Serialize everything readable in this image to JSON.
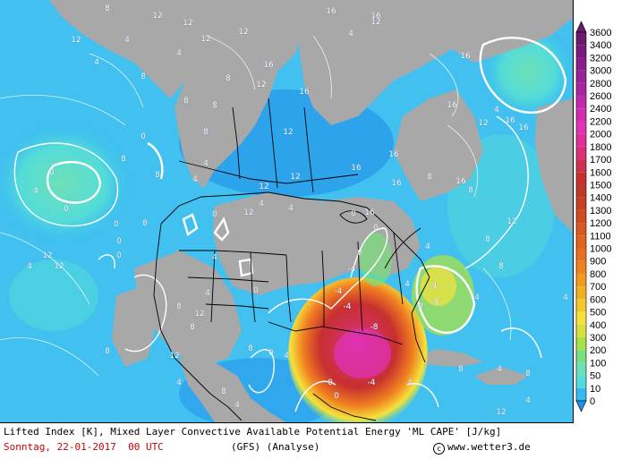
{
  "title": "Lifted Index [K], Mixed Layer Convective Available Potential Energy 'ML CAPE' [J/kg]",
  "date_line": "Sonntag, 22-01-2017  00 UTC",
  "model": "(GFS)",
  "analysis": "(Analyse)",
  "copyright": "www.wetter3.de",
  "copyright_symbol": "c",
  "colors": {
    "land": "#a8a8a8",
    "ocean_base": "#33b9f3",
    "ocean_light": "#5fd1ea",
    "ocean_cyan": "#54dcd8",
    "ocean_green": "#6ee0b8",
    "ocean_deep": "#1f8fea",
    "cape_yellow": "#f5e23b",
    "cape_orange": "#f0a020",
    "cape_red": "#d03030",
    "cape_magenta": "#e0309c"
  },
  "legend": {
    "levels": [
      "3600",
      "3400",
      "3200",
      "3000",
      "2800",
      "2600",
      "2400",
      "2200",
      "2000",
      "1800",
      "1700",
      "1600",
      "1500",
      "1400",
      "1300",
      "1200",
      "1100",
      "1000",
      "900",
      "800",
      "700",
      "600",
      "500",
      "400",
      "300",
      "200",
      "100",
      "50",
      "10",
      "0"
    ],
    "colors": [
      "#6a1a6a",
      "#7a1a7a",
      "#8a1e8a",
      "#9a2296",
      "#aa26a0",
      "#c02aa8",
      "#d02eb0",
      "#e032b4",
      "#e0309c",
      "#d8307a",
      "#d03050",
      "#c83030",
      "#c03828",
      "#c84024",
      "#d04c20",
      "#d85820",
      "#e06420",
      "#e87020",
      "#f08020",
      "#f09a22",
      "#f0b024",
      "#f5c82a",
      "#f5e23b",
      "#d8e040",
      "#a8e048",
      "#78e07c",
      "#6ee0b8",
      "#54dcd8",
      "#33b9f3",
      "#1f8fea"
    ]
  },
  "map_labels": {
    "lifted_index": [
      {
        "text": "8"
      },
      {
        "text": "12"
      },
      {
        "text": "12"
      },
      {
        "text": "12"
      },
      {
        "text": "4"
      },
      {
        "text": "4"
      },
      {
        "text": "12"
      },
      {
        "text": "4"
      },
      {
        "text": "8"
      },
      {
        "text": "16"
      },
      {
        "text": "12"
      },
      {
        "text": "8"
      },
      {
        "text": "16"
      },
      {
        "text": "8"
      },
      {
        "text": "16"
      },
      {
        "text": "4"
      },
      {
        "text": "12"
      },
      {
        "text": "16"
      },
      {
        "text": "12"
      },
      {
        "text": "8"
      },
      {
        "text": "8"
      },
      {
        "text": "12"
      },
      {
        "text": "16"
      },
      {
        "text": "12"
      },
      {
        "text": "16"
      },
      {
        "text": "16"
      },
      {
        "text": "16"
      },
      {
        "text": "8"
      },
      {
        "text": "12"
      },
      {
        "text": "16"
      },
      {
        "text": "12"
      },
      {
        "text": "4"
      },
      {
        "text": "4"
      },
      {
        "text": "16"
      },
      {
        "text": "12"
      },
      {
        "text": "16"
      },
      {
        "text": "4"
      },
      {
        "text": "8"
      },
      {
        "text": "8"
      },
      {
        "text": "4"
      },
      {
        "text": "0"
      },
      {
        "text": "0"
      },
      {
        "text": "0"
      },
      {
        "text": "4"
      },
      {
        "text": "4"
      },
      {
        "text": "0"
      },
      {
        "text": "0"
      },
      {
        "text": "0"
      },
      {
        "text": "0"
      },
      {
        "text": "8"
      },
      {
        "text": "12"
      },
      {
        "text": "12"
      },
      {
        "text": "4"
      },
      {
        "text": "8"
      },
      {
        "text": "8"
      },
      {
        "text": "4"
      },
      {
        "text": "0"
      },
      {
        "text": "8"
      },
      {
        "text": "12"
      },
      {
        "text": "8"
      },
      {
        "text": "12"
      },
      {
        "text": "0"
      },
      {
        "text": "4"
      },
      {
        "text": "0"
      },
      {
        "text": "0"
      },
      {
        "text": "-4"
      },
      {
        "text": "-4"
      },
      {
        "text": "-4"
      },
      {
        "text": "-8"
      },
      {
        "text": "-4"
      },
      {
        "text": "-4"
      },
      {
        "text": "0"
      },
      {
        "text": "4"
      },
      {
        "text": "8"
      },
      {
        "text": "8"
      },
      {
        "text": "12"
      },
      {
        "text": "8"
      },
      {
        "text": "4"
      },
      {
        "text": "8"
      },
      {
        "text": "12"
      },
      {
        "text": "0"
      },
      {
        "text": "4"
      },
      {
        "text": "4"
      },
      {
        "text": "4"
      },
      {
        "text": "8"
      },
      {
        "text": "4"
      },
      {
        "text": "4"
      },
      {
        "text": "4"
      },
      {
        "text": "8"
      },
      {
        "text": "4"
      },
      {
        "text": "0"
      },
      {
        "text": "0"
      },
      {
        "text": "4"
      },
      {
        "text": "8"
      },
      {
        "text": "16"
      },
      {
        "text": "16"
      }
    ]
  }
}
